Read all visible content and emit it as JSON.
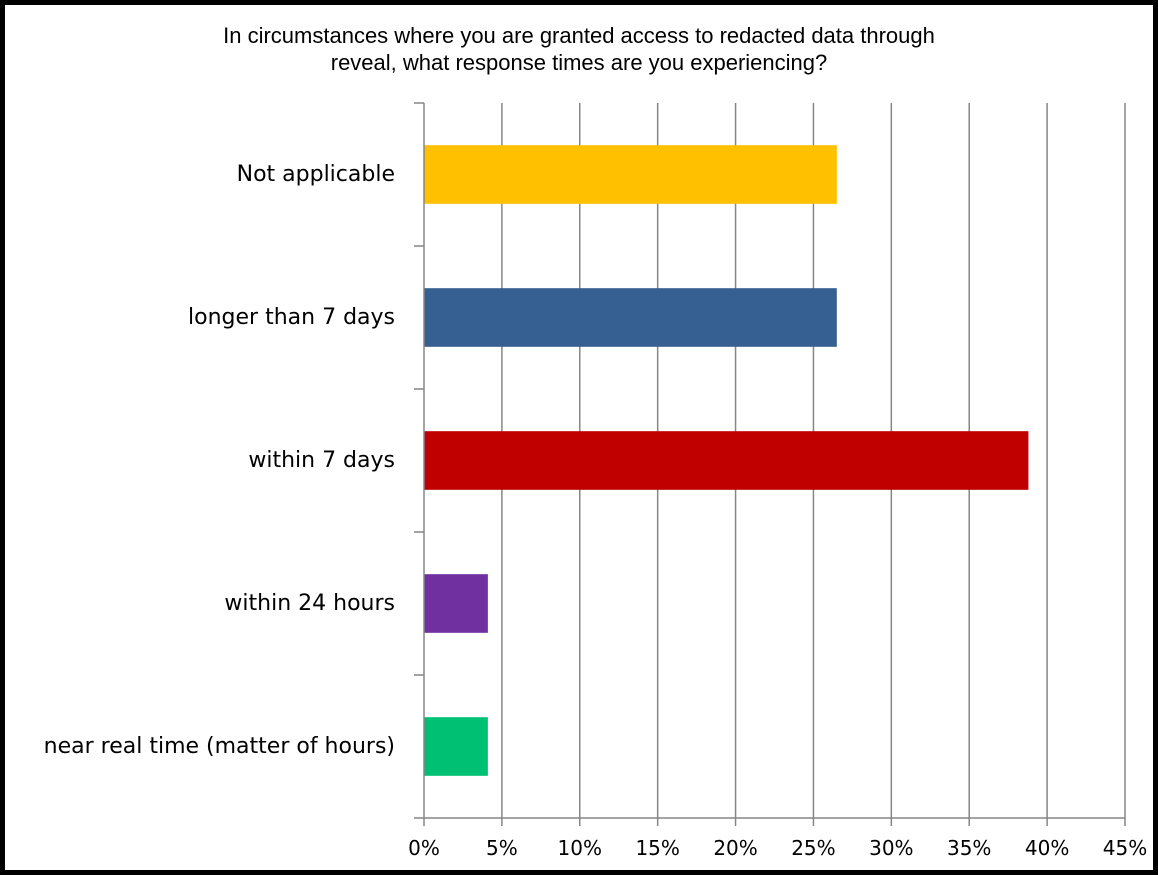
{
  "chart_data": {
    "type": "bar",
    "orientation": "horizontal",
    "title": "In circumstances where you are granted access to redacted data through\nreveal, what response times are you experiencing?",
    "xlabel": "",
    "ylabel": "",
    "categories": [
      "Not applicable",
      "longer than 7 days",
      "within 7 days",
      "within 24 hours",
      "near real time (matter of hours)"
    ],
    "values": [
      26.5,
      26.5,
      38.8,
      4.1,
      4.1
    ],
    "colors": [
      "#FFC000",
      "#376092",
      "#C00000",
      "#7030A0",
      "#00C074"
    ],
    "xlim": [
      0,
      45
    ],
    "x_ticks": [
      0,
      5,
      10,
      15,
      20,
      25,
      30,
      35,
      40,
      45
    ],
    "x_tick_labels": [
      "0%",
      "5%",
      "10%",
      "15%",
      "20%",
      "25%",
      "30%",
      "35%",
      "40%",
      "45%"
    ],
    "grid": true,
    "legend": "none"
  }
}
